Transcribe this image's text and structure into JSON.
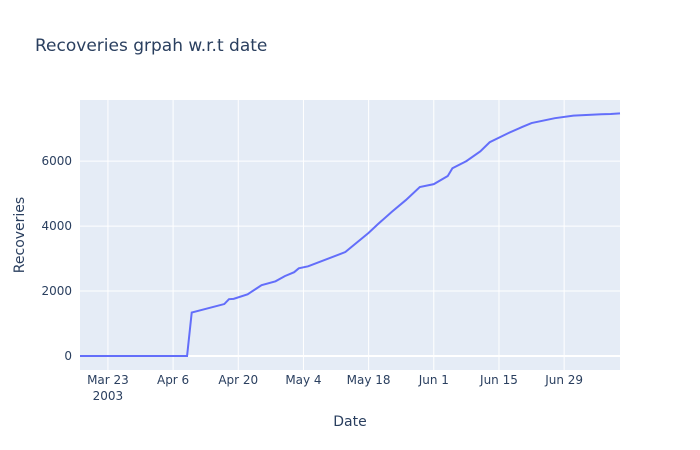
{
  "chart_data": {
    "type": "line",
    "title": "Recoveries grpah w.r.t date",
    "x_label": "Date",
    "y_label": "Recoveries",
    "x": [
      "2003-03-17",
      "2003-04-09",
      "2003-04-10",
      "2003-04-17",
      "2003-04-18",
      "2003-04-19",
      "2003-04-22",
      "2003-04-25",
      "2003-04-28",
      "2003-04-30",
      "2003-05-02",
      "2003-05-03",
      "2003-05-05",
      "2003-05-13",
      "2003-05-18",
      "2003-05-20",
      "2003-05-23",
      "2003-05-26",
      "2003-05-29",
      "2003-06-01",
      "2003-06-04",
      "2003-06-05",
      "2003-06-08",
      "2003-06-11",
      "2003-06-13",
      "2003-06-17",
      "2003-06-20",
      "2003-06-22",
      "2003-06-27",
      "2003-07-01",
      "2003-07-07",
      "2003-07-09",
      "2003-07-11"
    ],
    "series": [
      {
        "name": "Recoveries",
        "color": "#636efa",
        "values": [
          0,
          0,
          1340,
          1600,
          1750,
          1760,
          1900,
          2180,
          2300,
          2460,
          2580,
          2700,
          2760,
          3200,
          3790,
          4060,
          4440,
          4800,
          5200,
          5290,
          5540,
          5780,
          6000,
          6300,
          6580,
          6860,
          7050,
          7170,
          7320,
          7400,
          7440,
          7450,
          7470
        ]
      }
    ],
    "xlim": [
      "2003-03-17",
      "2003-07-11"
    ],
    "xticks": [
      {
        "value": "2003-03-23",
        "label": "Mar 23",
        "sublabel": "2003"
      },
      {
        "value": "2003-04-06",
        "label": "Apr 6"
      },
      {
        "value": "2003-04-20",
        "label": "Apr 20"
      },
      {
        "value": "2003-05-04",
        "label": "May 4"
      },
      {
        "value": "2003-05-18",
        "label": "May 18"
      },
      {
        "value": "2003-06-01",
        "label": "Jun 1"
      },
      {
        "value": "2003-06-15",
        "label": "Jun 15"
      },
      {
        "value": "2003-06-29",
        "label": "Jun 29"
      }
    ],
    "ylim": [
      -430,
      7880
    ],
    "yticks": [
      0,
      2000,
      4000,
      6000
    ],
    "grid": true,
    "background": "#e5ecf6"
  }
}
